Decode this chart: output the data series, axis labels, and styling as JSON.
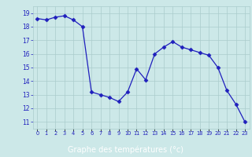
{
  "x": [
    0,
    1,
    2,
    3,
    4,
    5,
    6,
    7,
    8,
    9,
    10,
    11,
    12,
    13,
    14,
    15,
    16,
    17,
    18,
    19,
    20,
    21,
    22,
    23
  ],
  "y": [
    18.6,
    18.5,
    18.7,
    18.8,
    18.5,
    18.0,
    13.2,
    13.0,
    12.8,
    12.5,
    13.2,
    14.9,
    14.1,
    16.0,
    16.5,
    16.9,
    16.5,
    16.3,
    16.1,
    15.9,
    15.0,
    13.3,
    12.3,
    11.0
  ],
  "line_color": "#1f1fbd",
  "marker": "D",
  "marker_size": 2.5,
  "bg_color": "#cce8e8",
  "grid_color": "#aacccc",
  "xlabel": "Graphe des températures (°c)",
  "xlabel_color": "#ffffff",
  "xlabel_bg": "#1f1fbd",
  "ylabel_ticks": [
    11,
    12,
    13,
    14,
    15,
    16,
    17,
    18,
    19
  ],
  "xtick_labels": [
    "0",
    "1",
    "2",
    "3",
    "4",
    "5",
    "6",
    "7",
    "8",
    "9",
    "10",
    "11",
    "12",
    "13",
    "14",
    "15",
    "16",
    "17",
    "18",
    "19",
    "20",
    "21",
    "22",
    "23"
  ],
  "ylim": [
    10.5,
    19.5
  ],
  "xlim": [
    -0.5,
    23.5
  ],
  "tick_color": "#1f1fbd"
}
